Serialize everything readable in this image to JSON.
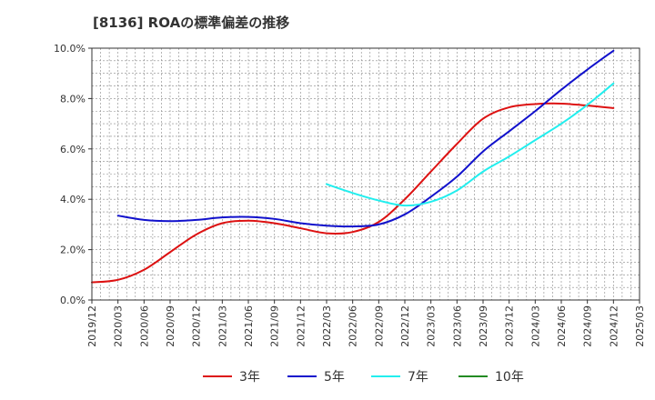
{
  "chart_data": {
    "type": "line",
    "title": "[8136]  ROAの標準偏差の推移",
    "xlabel": "",
    "ylabel": "",
    "ylim": [
      0,
      10
    ],
    "y_ticks": [
      "0.0%",
      "2.0%",
      "4.0%",
      "6.0%",
      "8.0%",
      "10.0%"
    ],
    "y_tick_values": [
      0,
      2,
      4,
      6,
      8,
      10
    ],
    "x": [
      "2019/12",
      "2020/03",
      "2020/06",
      "2020/09",
      "2020/12",
      "2021/03",
      "2021/06",
      "2021/09",
      "2021/12",
      "2022/03",
      "2022/06",
      "2022/09",
      "2022/12",
      "2023/03",
      "2023/06",
      "2023/09",
      "2023/12",
      "2024/03",
      "2024/06",
      "2024/09",
      "2024/12",
      "2025/03"
    ],
    "grid": true,
    "legend_position": "bottom",
    "series": [
      {
        "name": "3年",
        "color": "#dd1111",
        "values": [
          0.7,
          0.8,
          1.2,
          1.9,
          2.6,
          3.05,
          3.15,
          3.05,
          2.85,
          2.65,
          2.7,
          3.1,
          4.0,
          5.1,
          6.2,
          7.2,
          7.65,
          7.78,
          7.8,
          7.72,
          7.62,
          null
        ]
      },
      {
        "name": "5年",
        "color": "#1111cc",
        "values": [
          null,
          3.35,
          3.18,
          3.13,
          3.18,
          3.28,
          3.3,
          3.22,
          3.05,
          2.95,
          2.92,
          3.0,
          3.4,
          4.1,
          4.9,
          5.9,
          6.7,
          7.5,
          8.35,
          9.15,
          9.9,
          null
        ]
      },
      {
        "name": "7年",
        "color": "#22eeee",
        "values": [
          null,
          null,
          null,
          null,
          null,
          null,
          null,
          null,
          null,
          4.6,
          4.25,
          3.95,
          3.75,
          3.9,
          4.35,
          5.1,
          5.7,
          6.35,
          7.0,
          7.75,
          8.6,
          null
        ]
      },
      {
        "name": "10年",
        "color": "#228b22",
        "values": [
          null,
          null,
          null,
          null,
          null,
          null,
          null,
          null,
          null,
          null,
          null,
          null,
          null,
          null,
          null,
          null,
          null,
          null,
          null,
          null,
          null,
          null
        ]
      }
    ]
  }
}
